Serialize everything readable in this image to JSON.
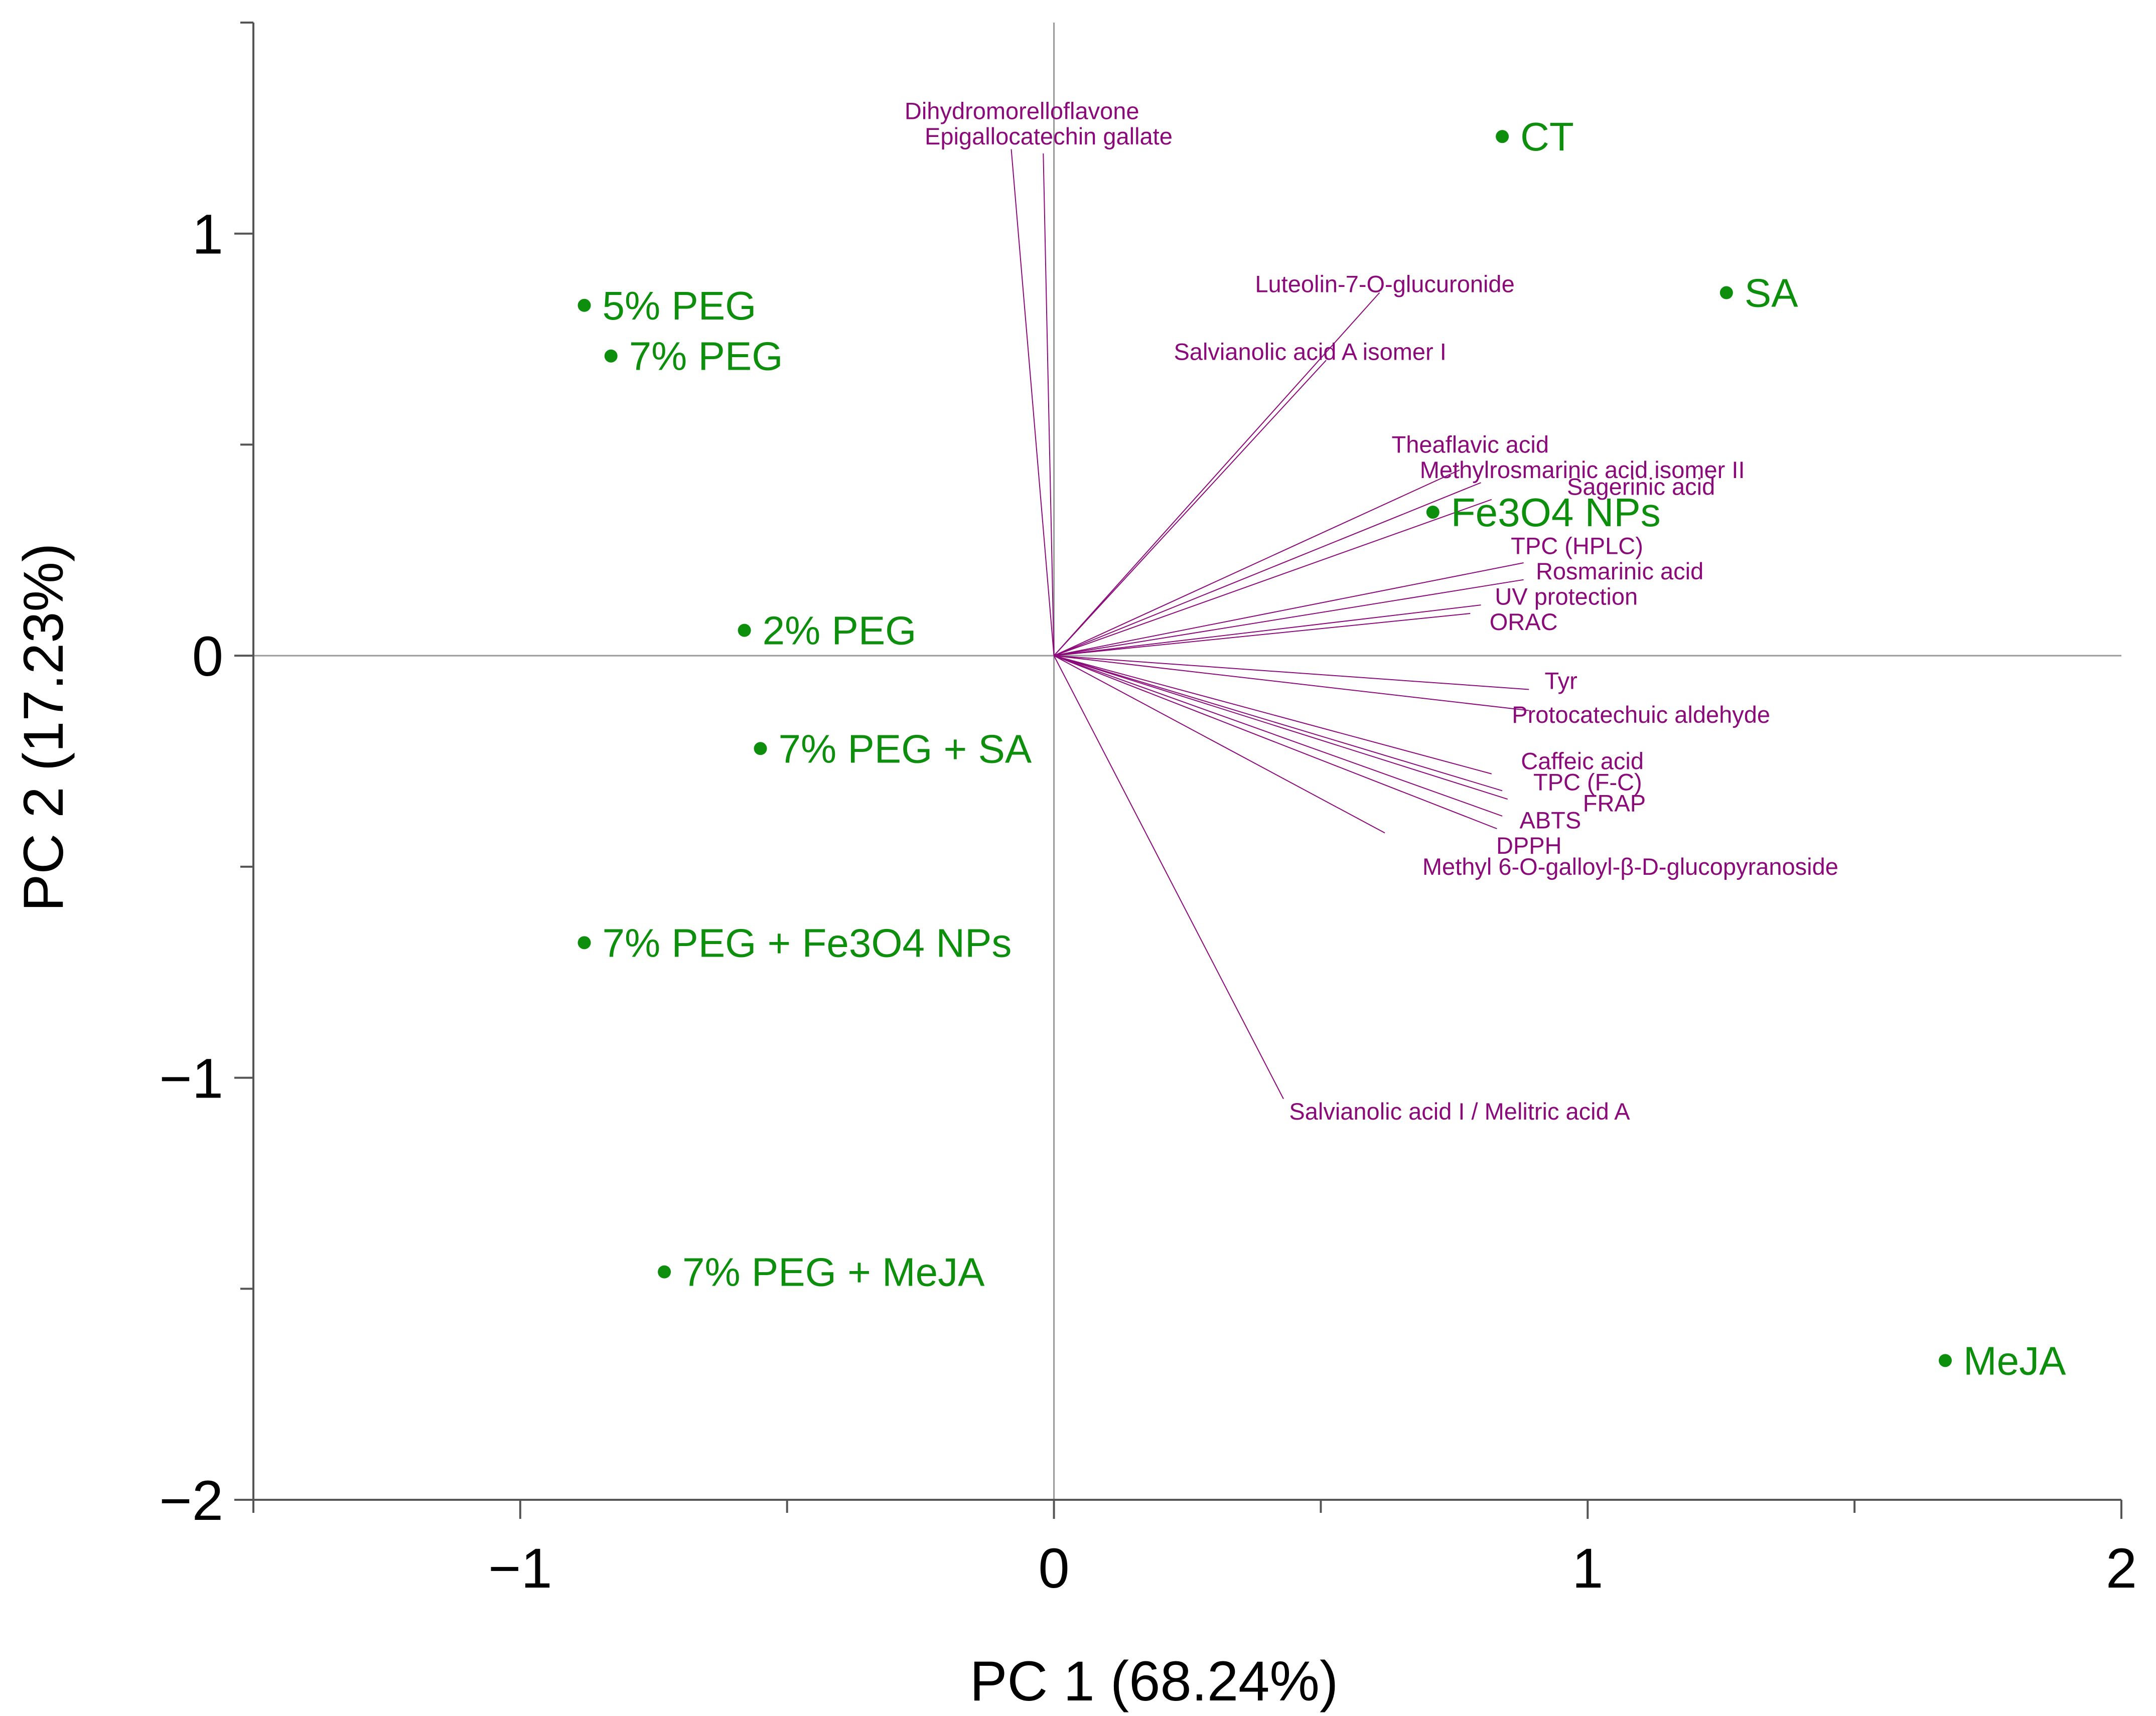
{
  "chart_data": {
    "type": "scatter",
    "subtype": "pca-biplot",
    "xlabel": "PC 1 (68.24%)",
    "ylabel": "PC 2 (17.23%)",
    "xlim": [
      -1.5,
      2.0
    ],
    "ylim": [
      -2.0,
      1.5
    ],
    "xticks": [
      -1,
      0,
      1,
      2
    ],
    "xtick_labels": [
      "−1",
      "0",
      "1",
      "2"
    ],
    "yticks": [
      -2,
      -1,
      0,
      1
    ],
    "ytick_labels": [
      "−2",
      "−1",
      "0",
      "1"
    ],
    "minor_step": 0.5,
    "grid": false,
    "zero_lines": true,
    "colors": {
      "samples": "#0d8f0d",
      "loadings": "#8b0a7a",
      "axes": "#555555",
      "zero_lines": "#999999"
    },
    "samples": [
      {
        "label": "CT",
        "x": 0.84,
        "y": 1.23
      },
      {
        "label": "SA",
        "x": 1.26,
        "y": 0.86
      },
      {
        "label": "5% PEG",
        "x": -0.88,
        "y": 0.83
      },
      {
        "label": "7% PEG",
        "x": -0.83,
        "y": 0.71
      },
      {
        "label": "Fe3O4 NPs",
        "x": 0.71,
        "y": 0.34
      },
      {
        "label": "2% PEG",
        "x": -0.58,
        "y": 0.06
      },
      {
        "label": "7% PEG + SA",
        "x": -0.55,
        "y": -0.22
      },
      {
        "label": "7% PEG + Fe3O4 NPs",
        "x": -0.88,
        "y": -0.68
      },
      {
        "label": "7% PEG + MeJA",
        "x": -0.73,
        "y": -1.46
      },
      {
        "label": "MeJA",
        "x": 1.67,
        "y": -1.67
      }
    ],
    "loadings": [
      {
        "label": "Dihydromorelloflavone",
        "x": -0.08,
        "y": 1.2,
        "lx": -0.06,
        "ly": 1.29
      },
      {
        "label": "Epigallocatechin gallate",
        "x": -0.02,
        "y": 1.19,
        "lx": -0.01,
        "ly": 1.23
      },
      {
        "label": "Luteolin-7-O-glucuronide",
        "x": 0.61,
        "y": 0.86,
        "lx": 0.62,
        "ly": 0.88
      },
      {
        "label": "Salvianolic acid A isomer I",
        "x": 0.51,
        "y": 0.7,
        "lx": 0.48,
        "ly": 0.72
      },
      {
        "label": "Theaflavic acid",
        "x": 0.76,
        "y": 0.44,
        "lx": 0.78,
        "ly": 0.5
      },
      {
        "label": "Methylrosmarinic acid isomer II",
        "x": 0.8,
        "y": 0.41,
        "lx": 0.99,
        "ly": 0.44
      },
      {
        "label": "Sagerinic acid",
        "x": 0.82,
        "y": 0.37,
        "lx": 1.1,
        "ly": 0.4
      },
      {
        "label": "TPC (HPLC)",
        "x": 0.88,
        "y": 0.22,
        "lx": 0.98,
        "ly": 0.26
      },
      {
        "label": "Rosmarinic acid",
        "x": 0.88,
        "y": 0.18,
        "lx": 1.06,
        "ly": 0.2
      },
      {
        "label": "UV protection",
        "x": 0.8,
        "y": 0.12,
        "lx": 0.96,
        "ly": 0.14
      },
      {
        "label": "ORAC",
        "x": 0.78,
        "y": 0.1,
        "lx": 0.88,
        "ly": 0.08
      },
      {
        "label": "Tyr",
        "x": 0.89,
        "y": -0.08,
        "lx": 0.95,
        "ly": -0.06
      },
      {
        "label": "Protocatechuic aldehyde",
        "x": 0.89,
        "y": -0.13,
        "lx": 1.1,
        "ly": -0.14
      },
      {
        "label": "Caffeic acid",
        "x": 0.82,
        "y": -0.28,
        "lx": 0.99,
        "ly": -0.25
      },
      {
        "label": "TPC (F-C)",
        "x": 0.84,
        "y": -0.32,
        "lx": 1.0,
        "ly": -0.3
      },
      {
        "label": "FRAP",
        "x": 0.85,
        "y": -0.34,
        "lx": 1.05,
        "ly": -0.35
      },
      {
        "label": "ABTS",
        "x": 0.84,
        "y": -0.38,
        "lx": 0.93,
        "ly": -0.39
      },
      {
        "label": "DPPH",
        "x": 0.83,
        "y": -0.41,
        "lx": 0.89,
        "ly": -0.45
      },
      {
        "label": "Methyl 6-O-galloyl-β-D-glucopyranoside",
        "x": 0.62,
        "y": -0.42,
        "lx": 1.08,
        "ly": -0.5
      },
      {
        "label": "Salvianolic acid I / Melitric acid A",
        "x": 0.43,
        "y": -1.05,
        "lx": 0.76,
        "ly": -1.08
      }
    ]
  }
}
